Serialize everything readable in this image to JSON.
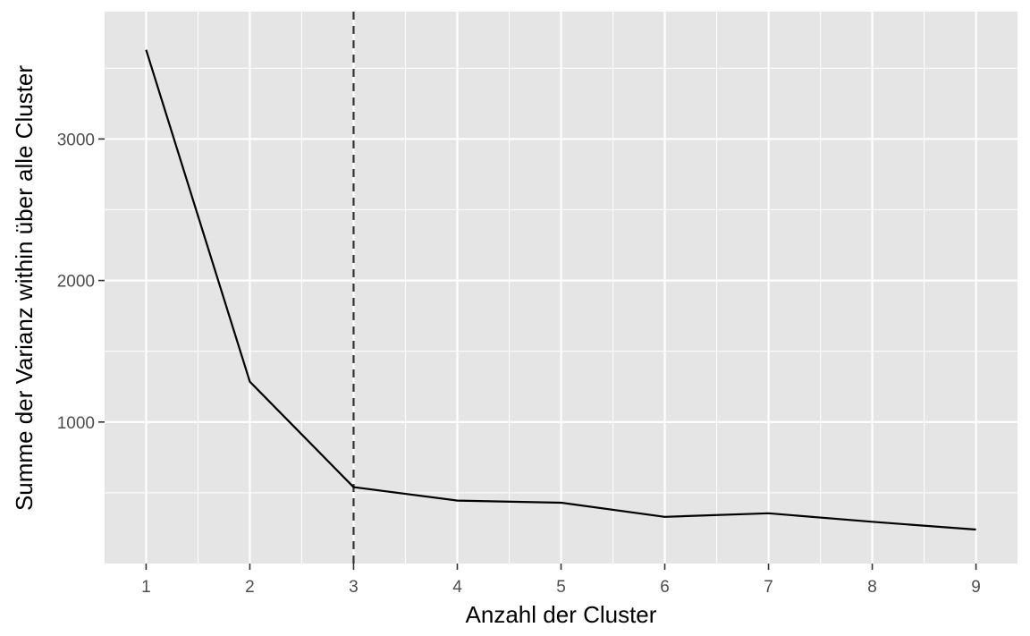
{
  "chart_data": {
    "type": "line",
    "xlabel": "Anzahl der Cluster",
    "ylabel": "Summe der Varianz within über alle Cluster",
    "x": [
      1,
      2,
      3,
      4,
      5,
      6,
      7,
      8,
      9
    ],
    "series": [
      {
        "values": [
          3630,
          1285,
          540,
          445,
          430,
          330,
          355,
          295,
          240
        ]
      }
    ],
    "x_ticks": [
      1,
      2,
      3,
      4,
      5,
      6,
      7,
      8,
      9
    ],
    "y_ticks": [
      1000,
      2000,
      3000
    ],
    "xlim": [
      0.6,
      9.4
    ],
    "ylim": [
      0,
      3900
    ],
    "vline_x": 3,
    "vline_style": "dashed",
    "grid": true,
    "background": "#e5e5e5",
    "line_color": "#000000"
  }
}
